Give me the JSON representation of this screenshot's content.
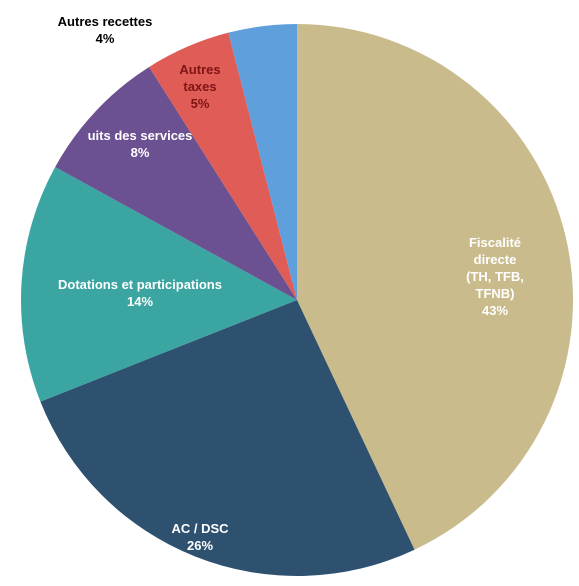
{
  "chart_data": {
    "type": "pie",
    "categories": [
      "Fiscalité directe\n(TH, TFB, TFNB)",
      "AC / DSC",
      "Dotations et participations",
      "uits des services",
      "Autres\ntaxes",
      "Autres recettes"
    ],
    "values": [
      43,
      26,
      14,
      8,
      5,
      4
    ],
    "value_labels": [
      "43%",
      "26%",
      "14%",
      "8%",
      "5%",
      "4%"
    ],
    "colors": [
      "#c9bb8c",
      "#2f5170",
      "#3ba5a2",
      "#6b5191",
      "#e05c57",
      "#5e9fdc"
    ]
  }
}
